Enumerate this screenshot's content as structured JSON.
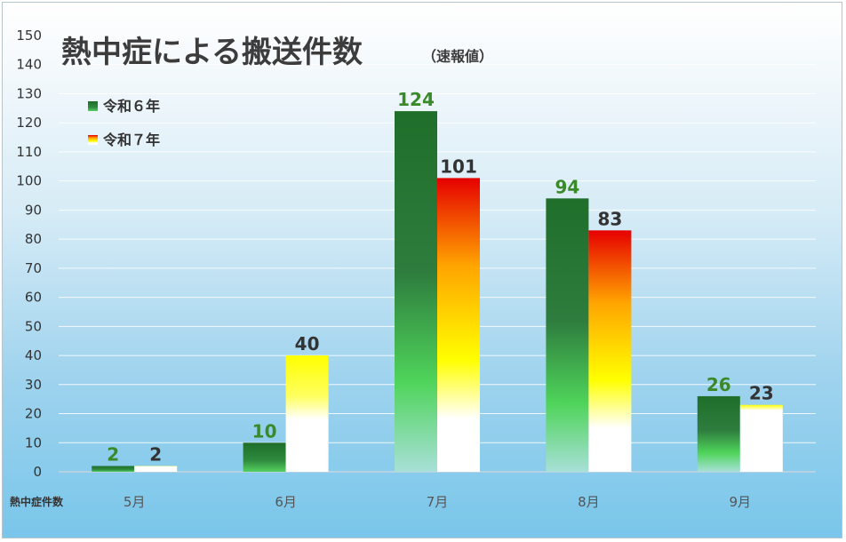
{
  "chart_data": {
    "type": "bar",
    "title": "熱中症による搬送件数",
    "subtitle": "（速報値）",
    "categories": [
      "5月",
      "6月",
      "7月",
      "8月",
      "9月"
    ],
    "row_header": "熱中症件数",
    "ylim": [
      0,
      150
    ],
    "y_ticks": [
      0,
      10,
      20,
      30,
      40,
      50,
      60,
      70,
      80,
      90,
      100,
      110,
      120,
      130,
      140,
      150
    ],
    "grid": true,
    "legend_position": "top-left",
    "series": [
      {
        "name": "令和６年",
        "values": [
          2,
          10,
          124,
          94,
          26
        ],
        "label_color": "#3a8a2a"
      },
      {
        "name": "令和７年",
        "values": [
          2,
          40,
          101,
          83,
          23
        ],
        "label_color": "#333333"
      }
    ]
  }
}
